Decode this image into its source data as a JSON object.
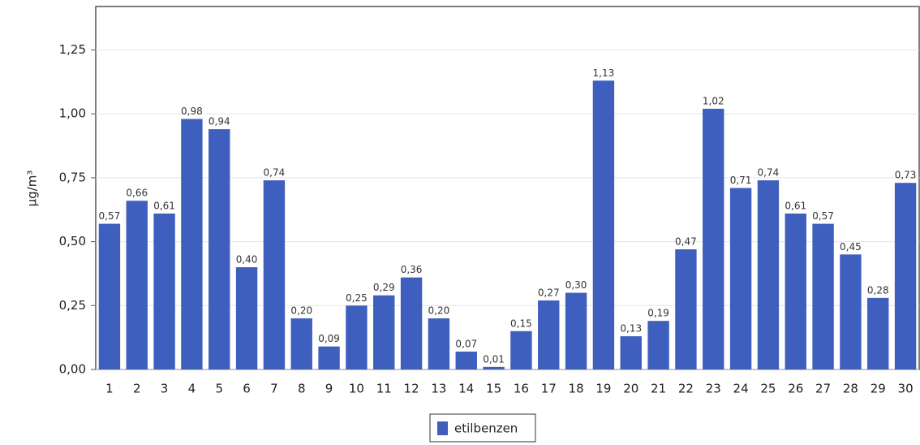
{
  "chart_data": {
    "type": "bar",
    "y_label": "µg/m³",
    "categories": [
      "1",
      "2",
      "3",
      "4",
      "5",
      "6",
      "7",
      "8",
      "9",
      "10",
      "11",
      "12",
      "13",
      "14",
      "15",
      "16",
      "17",
      "18",
      "19",
      "20",
      "21",
      "22",
      "23",
      "24",
      "25",
      "26",
      "27",
      "28",
      "29",
      "30"
    ],
    "series": [
      {
        "name": "etilbenzen",
        "color": "#3f5fbf",
        "values": [
          0.57,
          0.66,
          0.61,
          0.98,
          0.94,
          0.4,
          0.74,
          0.2,
          0.09,
          0.25,
          0.29,
          0.36,
          0.2,
          0.07,
          0.01,
          0.15,
          0.27,
          0.3,
          1.13,
          0.13,
          0.19,
          0.47,
          1.02,
          0.71,
          0.74,
          0.61,
          0.57,
          0.45,
          0.28,
          0.73
        ],
        "value_labels": [
          "0,57",
          "0,66",
          "0,61",
          "0,98",
          "0,94",
          "0,40",
          "0,74",
          "0,20",
          "0,09",
          "0,25",
          "0,29",
          "0,36",
          "0,20",
          "0,07",
          "0,01",
          "0,15",
          "0,27",
          "0,30",
          "1,13",
          "0,13",
          "0,19",
          "0,47",
          "1,02",
          "0,71",
          "0,74",
          "0,61",
          "0,57",
          "0,45",
          "0,28",
          "0,73"
        ]
      }
    ],
    "ylim": [
      0,
      1.42
    ],
    "yticks": [
      {
        "value": 0,
        "label": "0,00"
      },
      {
        "value": 0.25,
        "label": "0,25"
      },
      {
        "value": 0.5,
        "label": "0,50"
      },
      {
        "value": 0.75,
        "label": "0,75"
      },
      {
        "value": 1,
        "label": "1,00"
      },
      {
        "value": 1.25,
        "label": "1,25"
      }
    ],
    "grid": true,
    "legend": "bottom"
  }
}
